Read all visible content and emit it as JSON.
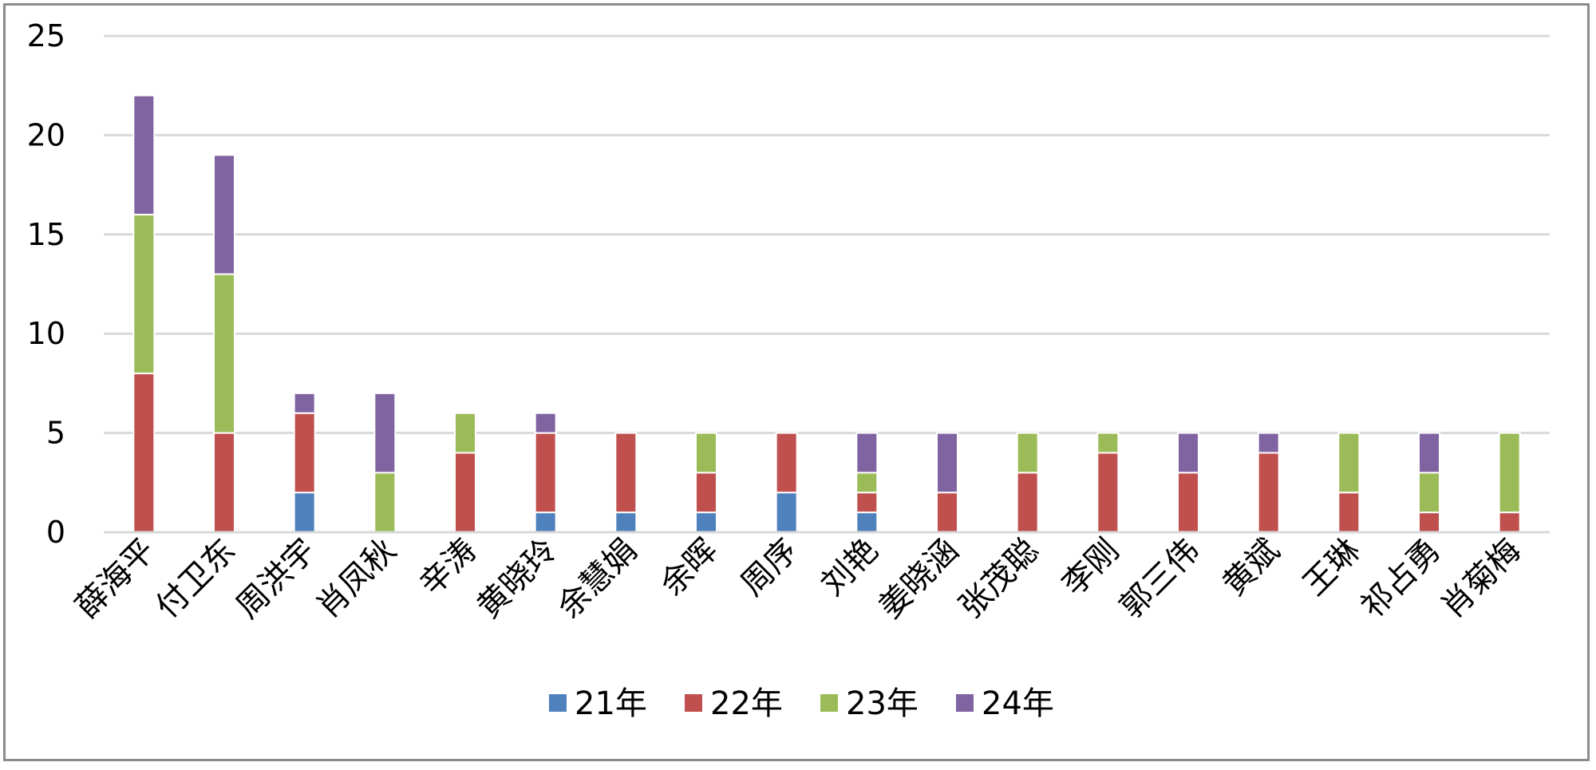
{
  "chart_data": {
    "type": "bar",
    "stacked": true,
    "categories": [
      "薛海平",
      "付卫东",
      "周洪宇",
      "肖凤秋",
      "辛涛",
      "黄晓玲",
      "余慧娟",
      "余晖",
      "周序",
      "刘艳",
      "姜晓涵",
      "张茂聪",
      "李刚",
      "郭三伟",
      "黄斌",
      "王琳",
      "祁占勇",
      "肖菊梅"
    ],
    "series": [
      {
        "name": "21年",
        "color": "#4f81bd",
        "values": [
          0,
          0,
          2,
          0,
          0,
          1,
          1,
          1,
          2,
          1,
          0,
          0,
          0,
          0,
          0,
          0,
          0,
          0
        ]
      },
      {
        "name": "22年",
        "color": "#c0504d",
        "values": [
          8,
          5,
          4,
          0,
          4,
          4,
          4,
          2,
          3,
          1,
          2,
          3,
          4,
          3,
          4,
          2,
          1,
          1
        ]
      },
      {
        "name": "23年",
        "color": "#9bbb59",
        "values": [
          8,
          8,
          0,
          3,
          2,
          0,
          0,
          2,
          0,
          1,
          0,
          2,
          1,
          0,
          0,
          3,
          2,
          4
        ]
      },
      {
        "name": "24年",
        "color": "#8064a2",
        "values": [
          6,
          6,
          1,
          4,
          0,
          1,
          0,
          0,
          0,
          2,
          3,
          0,
          0,
          2,
          1,
          0,
          2,
          0
        ]
      }
    ],
    "title": "",
    "xlabel": "",
    "ylabel": "",
    "ylim": [
      0,
      25
    ],
    "yticks": [
      0,
      5,
      10,
      15,
      20,
      25
    ],
    "grid": true,
    "legend": "bottom"
  }
}
